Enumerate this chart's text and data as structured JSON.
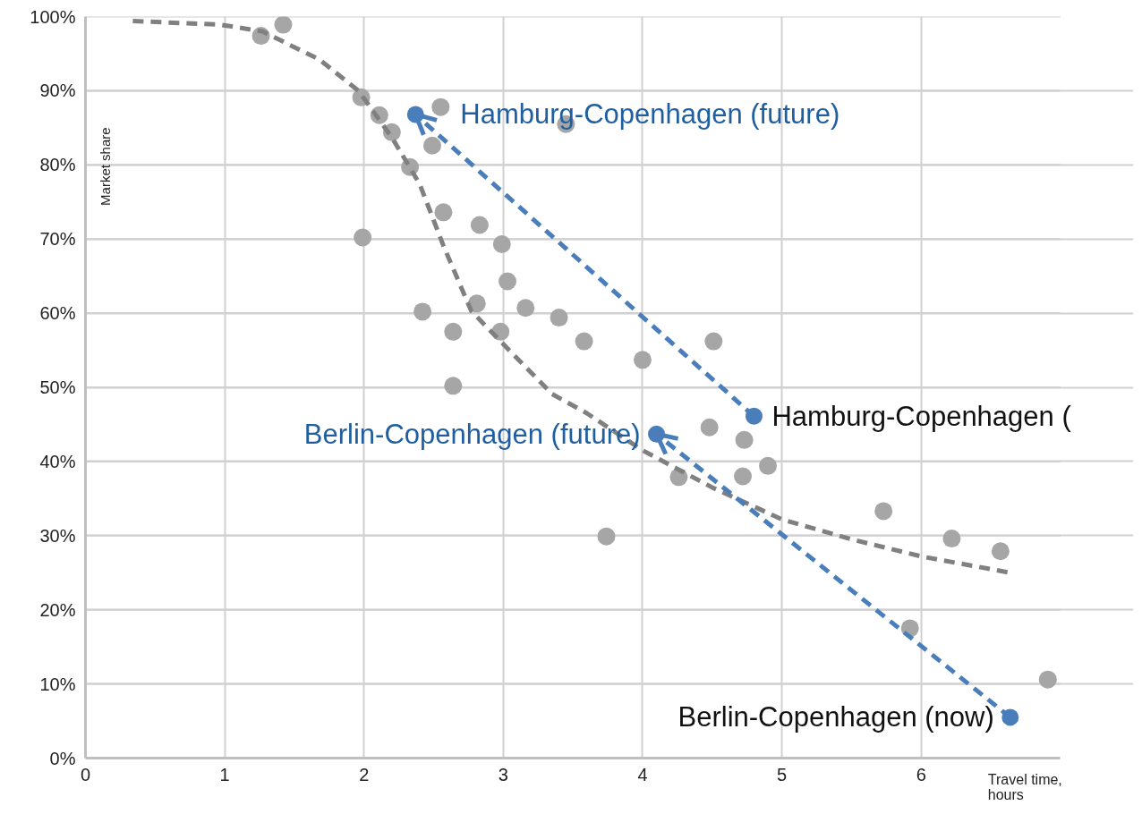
{
  "chart_data": {
    "type": "scatter",
    "xlabel": "Travel time, hours",
    "ylabel": "Market share",
    "xlim": [
      0,
      7
    ],
    "ylim": [
      0,
      100
    ],
    "xticks": [
      0,
      1,
      2,
      3,
      4,
      5,
      6
    ],
    "yticks": [
      {
        "value": 0,
        "label": "0%"
      },
      {
        "value": 10,
        "label": "10%"
      },
      {
        "value": 20,
        "label": "20%"
      },
      {
        "value": 30,
        "label": "30%"
      },
      {
        "value": 40,
        "label": "40%"
      },
      {
        "value": 50,
        "label": "50%"
      },
      {
        "value": 60,
        "label": "60%"
      },
      {
        "value": 70,
        "label": "70%"
      },
      {
        "value": 80,
        "label": "80%"
      },
      {
        "value": 90,
        "label": "90%"
      },
      {
        "value": 100,
        "label": "100%"
      }
    ],
    "grid": true,
    "marker": "circle",
    "series": [
      {
        "color": "#a6a6a6",
        "x": [
          1.26,
          1.42,
          1.98,
          2.11,
          2.2,
          2.33,
          1.99,
          2.55,
          2.49,
          2.57,
          2.83,
          2.99,
          3.03,
          2.42,
          2.81,
          3.16,
          3.4,
          2.64,
          2.98,
          2.64,
          3.45,
          3.58,
          4.51,
          4.0,
          4.48,
          4.73,
          4.9,
          4.72,
          4.26,
          5.73,
          3.74,
          6.22,
          6.57,
          5.92,
          6.91
        ],
        "values": [
          97.4,
          98.9,
          89.1,
          86.7,
          84.4,
          79.7,
          70.2,
          87.8,
          82.6,
          73.6,
          71.9,
          69.3,
          64.3,
          60.2,
          61.3,
          60.7,
          59.4,
          57.5,
          57.5,
          50.2,
          85.5,
          56.2,
          56.2,
          53.7,
          44.6,
          42.9,
          39.4,
          38.0,
          37.9,
          33.3,
          29.9,
          29.6,
          27.9,
          17.5,
          10.6
        ]
      },
      {
        "type": "line",
        "marker": "none",
        "color": "#808080",
        "line_style": "dashed",
        "x": [
          0.34,
          0.97,
          1.27,
          1.68,
          1.96,
          2.2,
          2.4,
          2.57,
          2.77,
          2.97,
          3.35,
          3.6,
          4.0,
          4.5,
          5.0,
          5.5,
          6.0,
          6.64
        ],
        "values": [
          99.4,
          98.9,
          98.0,
          94.2,
          90.0,
          83.7,
          77.4,
          69.1,
          60.3,
          56.4,
          49.1,
          46.5,
          41.5,
          36.5,
          32.2,
          29.5,
          27.2,
          25.0
        ]
      },
      {
        "type": "line",
        "marker": "none",
        "color": "#4a7ebb",
        "line_style": "dashed",
        "x": [
          4.8,
          2.37
        ],
        "values": [
          46.1,
          86.8
        ]
      },
      {
        "type": "line",
        "marker": "none",
        "color": "#4a7ebb",
        "line_style": "dashed",
        "x": [
          6.64,
          4.1
        ],
        "values": [
          5.5,
          43.7
        ]
      },
      {
        "color": "#4a7ebb",
        "x": [
          2.37,
          4.8,
          4.1,
          6.64
        ],
        "values": [
          86.8,
          46.1,
          43.7,
          5.5
        ]
      }
    ],
    "annotations": [
      {
        "text": "Hamburg-Copenhagen (future)",
        "x": 2.37,
        "y": 86.8
      },
      {
        "text": "Hamburg-Copenhagen (",
        "x": 4.8,
        "y": 46.1
      },
      {
        "text": "Berlin-Copenhagen (future)",
        "x": 4.1,
        "y": 43.7
      },
      {
        "text": "Berlin-Copenhagen (now)",
        "x": 6.64,
        "y": 5.5
      }
    ]
  }
}
